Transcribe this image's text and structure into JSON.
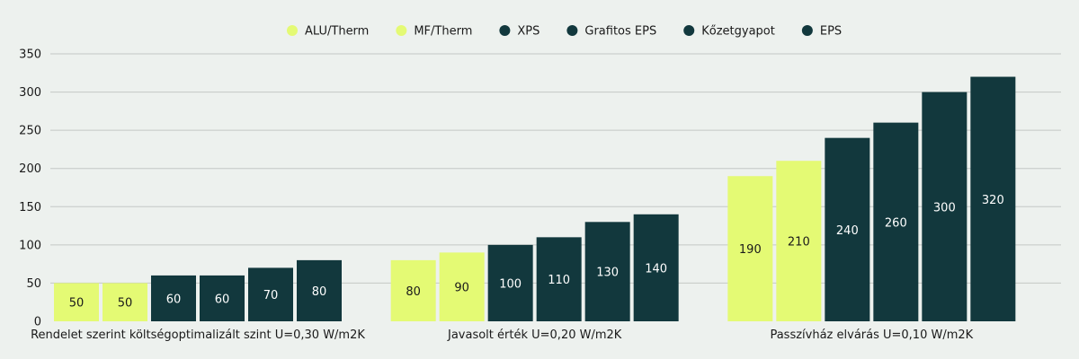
{
  "chart_data": {
    "type": "bar",
    "categories": [
      "Rendelet szerint költségoptimalizált szint U=0,30 W/m2K",
      "Javasolt érték U=0,20 W/m2K",
      "Passzívház elvárás U=0,10 W/m2K"
    ],
    "series": [
      {
        "name": "ALU/Therm",
        "color": "#e4fa74",
        "values": [
          50,
          80,
          190
        ]
      },
      {
        "name": "MF/Therm",
        "color": "#e4fa74",
        "values": [
          50,
          90,
          210
        ]
      },
      {
        "name": "XPS",
        "color": "#12383d",
        "values": [
          60,
          100,
          240
        ]
      },
      {
        "name": "Grafitos EPS",
        "color": "#12383d",
        "values": [
          60,
          110,
          260
        ]
      },
      {
        "name": "Kőzetgyapot",
        "color": "#12383d",
        "values": [
          70,
          130,
          300
        ]
      },
      {
        "name": "EPS",
        "color": "#12383d",
        "values": [
          80,
          140,
          320
        ]
      }
    ],
    "ylim": [
      0,
      350
    ],
    "yticks": [
      0,
      50,
      100,
      150,
      200,
      250,
      300,
      350
    ],
    "grid": true,
    "legend_position": "top-center",
    "data_labels": true
  },
  "colors": {
    "background": "#edf1ee",
    "grid": "#c4c8c5",
    "label_dark": "#1a1a1a",
    "label_light": "#ffffff"
  }
}
